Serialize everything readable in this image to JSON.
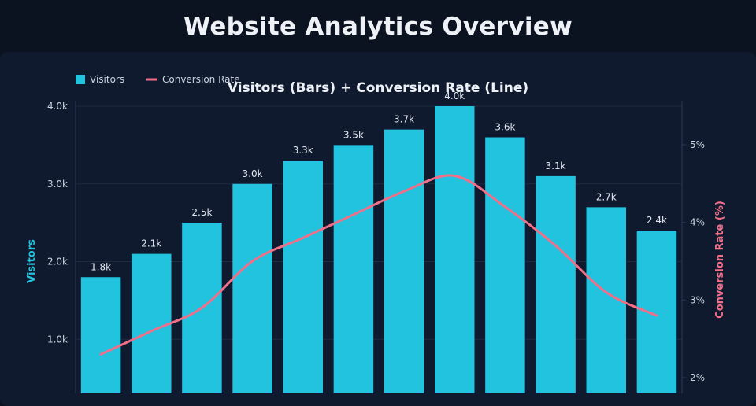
{
  "page": {
    "title": "Website Analytics Overview"
  },
  "colors": {
    "background": "#0b1220",
    "card": "#101a2e",
    "bars": "#22c3de",
    "line": "#f26f8a",
    "grid": "#1f2a40"
  },
  "chart_data": {
    "type": "bar",
    "title": "Visitors (Bars) + Conversion Rate (Line)",
    "ylabel": "Visitors",
    "y2label": "Conversion Rate (%)",
    "ylim": [
      0,
      4000
    ],
    "y2lim": [
      2,
      5.5
    ],
    "y_ticks": [
      "1.0k",
      "2.0k",
      "3.0k",
      "4.0k"
    ],
    "y2_ticks": [
      "2%",
      "3%",
      "4%",
      "5%"
    ],
    "legend": [
      "Visitors",
      "Conversion Rate"
    ],
    "legend_position": "top-left",
    "grid": true,
    "series": [
      {
        "name": "Visitors",
        "type": "bar",
        "values": [
          1800,
          2100,
          2500,
          3000,
          3300,
          3500,
          3700,
          4000,
          3600,
          3100,
          2700,
          2400
        ],
        "labels": [
          "1.8k",
          "2.1k",
          "2.5k",
          "3.0k",
          "3.3k",
          "3.5k",
          "3.7k",
          "4.0k",
          "3.6k",
          "3.1k",
          "2.7k",
          "2.4k"
        ]
      },
      {
        "name": "Conversion Rate",
        "type": "line",
        "axis": "right",
        "values": [
          2.3,
          2.6,
          2.9,
          3.5,
          3.8,
          4.1,
          4.4,
          4.6,
          4.2,
          3.7,
          3.1,
          2.8
        ]
      }
    ]
  }
}
